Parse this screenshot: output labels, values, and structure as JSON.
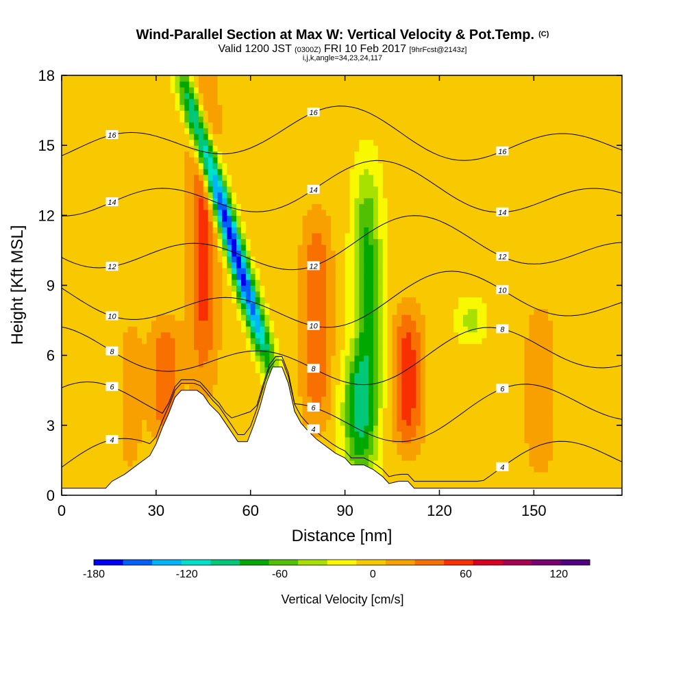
{
  "header": {
    "title_main": "Wind-Parallel Section at Max W: Vertical Velocity & Pot.Temp.",
    "title_tag": "(C)",
    "valid_prefix": "Valid 1200 JST",
    "valid_utc": "(0300Z)",
    "valid_date": "FRI 10 Feb 2017",
    "forecast": "[9hrFcst@2143z]",
    "indices": "i,j,k,angle=34,23,24,117"
  },
  "chart_data": {
    "type": "heatmap",
    "xlabel": "Distance [nm]",
    "ylabel": "Height [Kft MSL]",
    "xlim": [
      0,
      178
    ],
    "ylim": [
      0,
      18
    ],
    "xticks": [
      "0",
      "30",
      "60",
      "90",
      "120",
      "150"
    ],
    "xtick_values": [
      0,
      30,
      60,
      90,
      120,
      150
    ],
    "yticks": [
      "0",
      "3",
      "6",
      "9",
      "12",
      "15",
      "18"
    ],
    "ytick_values": [
      0,
      3,
      6,
      9,
      12,
      15,
      18
    ],
    "colorbar": {
      "label": "Vertical Velocity [cm/s]",
      "min": -180,
      "max": 140,
      "step": 20,
      "tick_labels": [
        "-180",
        "-120",
        "-60",
        "0",
        "60",
        "120"
      ],
      "tick_values": [
        -180,
        -120,
        -60,
        0,
        60,
        120
      ],
      "colors": [
        "#0000f0",
        "#0060f8",
        "#00b4f8",
        "#00e0c8",
        "#00c878",
        "#00a800",
        "#50c000",
        "#a8e000",
        "#f8f800",
        "#f8c800",
        "#f8a000",
        "#f87000",
        "#f83000",
        "#d80020",
        "#a80050",
        "#780070",
        "#500080"
      ]
    },
    "background_w": 10,
    "features": [
      {
        "x": 45,
        "y0": 5,
        "y1": 18,
        "w": 70
      },
      {
        "x": 33,
        "y0": 2.5,
        "y1": 7.5,
        "w": 60
      },
      {
        "x": 110,
        "y0": 2,
        "y1": 8,
        "w": 70
      },
      {
        "x": 81,
        "y0": 3,
        "y1": 12,
        "w": 60
      },
      {
        "x": 152,
        "y0": 1,
        "y1": 8,
        "w": 40
      },
      {
        "x": 22,
        "y0": 0.5,
        "y1": 8,
        "w": 25
      },
      {
        "x": 66,
        "y0": 5.5,
        "y1": 18,
        "w": -170
      },
      {
        "x": 97,
        "y0": 1,
        "y1": 14,
        "w": -70
      },
      {
        "x": 93,
        "y0": 1,
        "y1": 6,
        "w": -45
      },
      {
        "x": 130,
        "y0": 6.5,
        "y1": 8.5,
        "w": -25
      }
    ],
    "terrain": [
      [
        0,
        0.3
      ],
      [
        14,
        0.3
      ],
      [
        16,
        0.6
      ],
      [
        20,
        0.9
      ],
      [
        24,
        1.3
      ],
      [
        28,
        1.7
      ],
      [
        30,
        2.2
      ],
      [
        32,
        2.9
      ],
      [
        34,
        3.5
      ],
      [
        36,
        4.2
      ],
      [
        38,
        4.5
      ],
      [
        40,
        4.5
      ],
      [
        43,
        4.5
      ],
      [
        45,
        4.3
      ],
      [
        47,
        3.9
      ],
      [
        50,
        3.5
      ],
      [
        53,
        2.9
      ],
      [
        56,
        2.3
      ],
      [
        59,
        2.3
      ],
      [
        61,
        3.0
      ],
      [
        63,
        3.8
      ],
      [
        65,
        4.8
      ],
      [
        67,
        5.5
      ],
      [
        70,
        5.5
      ],
      [
        72,
        4.8
      ],
      [
        74,
        3.6
      ],
      [
        76,
        3.1
      ],
      [
        78,
        2.8
      ],
      [
        81,
        2.4
      ],
      [
        84,
        2.1
      ],
      [
        87,
        1.8
      ],
      [
        90,
        1.6
      ],
      [
        92,
        1.3
      ],
      [
        96,
        1.3
      ],
      [
        99,
        1.1
      ],
      [
        102,
        0.8
      ],
      [
        104,
        0.5
      ],
      [
        107,
        0.6
      ],
      [
        110,
        0.6
      ],
      [
        112,
        0.3
      ],
      [
        178,
        0.3
      ]
    ],
    "theta_levels": [
      4,
      6,
      8,
      10,
      12,
      14,
      16
    ],
    "theta_label_values": [
      "4",
      "6",
      "8",
      "10",
      "12",
      "14",
      "16"
    ]
  }
}
